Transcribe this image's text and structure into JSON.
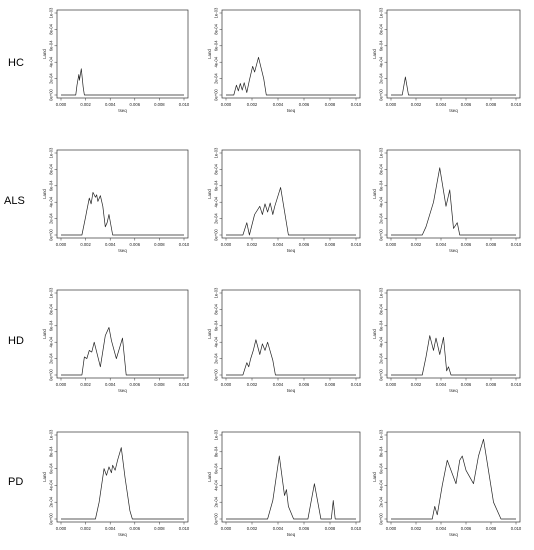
{
  "row_labels": [
    "HC",
    "ALS",
    "HD",
    "PD"
  ],
  "chart_data": [
    {
      "group": "HC",
      "column": 1,
      "type": "line",
      "xlabel": "tseq",
      "ylabel": "Land",
      "xlim": [
        0,
        0.01
      ],
      "ylim": [
        0,
        0.001
      ],
      "x_ticks": [
        "0.000",
        "0.002",
        "0.004",
        "0.006",
        "0.008",
        "0.010"
      ],
      "y_ticks": [
        "0e+00",
        "2e-04",
        "4e-04",
        "6e-04",
        "8e-04",
        "1e-03"
      ],
      "x": [
        0,
        0.0012,
        0.0013,
        0.00145,
        0.0015,
        0.00165,
        0.0018,
        0.0019,
        0.01
      ],
      "y": [
        0,
        0,
        0.00012,
        0.00025,
        0.00018,
        0.00032,
        0.0001,
        0,
        0
      ]
    },
    {
      "group": "HC",
      "column": 2,
      "type": "line",
      "xlabel": "tseq",
      "ylabel": "Land",
      "xlim": [
        0,
        0.01
      ],
      "ylim": [
        0,
        0.001
      ],
      "x_ticks": [
        "0.000",
        "0.002",
        "0.004",
        "0.006",
        "0.008",
        "0.010"
      ],
      "y_ticks": [
        "0e+00",
        "2e-04",
        "4e-04",
        "6e-04",
        "8e-04",
        "1e-03"
      ],
      "x": [
        0,
        0.0006,
        0.0008,
        0.00095,
        0.0011,
        0.00125,
        0.0014,
        0.0016,
        0.0018,
        0.00205,
        0.0022,
        0.0025,
        0.0029,
        0.0031,
        0.01
      ],
      "y": [
        0,
        0,
        0.00012,
        5e-05,
        0.00014,
        6e-05,
        0.00015,
        3e-05,
        0.00018,
        0.00035,
        0.00028,
        0.00046,
        0.0002,
        0,
        0
      ]
    },
    {
      "group": "HC",
      "column": 3,
      "type": "line",
      "xlabel": "tseq",
      "ylabel": "Land",
      "xlim": [
        0,
        0.01
      ],
      "ylim": [
        0,
        0.001
      ],
      "x_ticks": [
        "0.000",
        "0.002",
        "0.004",
        "0.006",
        "0.008",
        "0.010"
      ],
      "y_ticks": [
        "0e+00",
        "2e-04",
        "4e-04",
        "6e-04",
        "8e-04",
        "1e-03"
      ],
      "x": [
        0,
        0.0009,
        0.00115,
        0.0014,
        0.01
      ],
      "y": [
        0,
        0,
        0.00022,
        0,
        0
      ]
    },
    {
      "group": "ALS",
      "column": 1,
      "type": "line",
      "xlabel": "tseq",
      "ylabel": "Land",
      "xlim": [
        0,
        0.01
      ],
      "ylim": [
        0,
        0.001
      ],
      "x_ticks": [
        "0.000",
        "0.002",
        "0.004",
        "0.006",
        "0.008",
        "0.010"
      ],
      "y_ticks": [
        "0e+00",
        "2e-04",
        "4e-04",
        "6e-04",
        "8e-04",
        "1e-03"
      ],
      "x": [
        0,
        0.0017,
        0.002,
        0.0021,
        0.0023,
        0.00245,
        0.0026,
        0.0028,
        0.0029,
        0.003,
        0.0032,
        0.0034,
        0.0036,
        0.00375,
        0.0039,
        0.0042,
        0.01
      ],
      "y": [
        0,
        0,
        0.00022,
        0.0003,
        0.00045,
        0.00038,
        0.00052,
        0.00046,
        0.00049,
        0.00041,
        0.00048,
        0.00035,
        0.0001,
        0.00015,
        0.00025,
        0,
        0
      ]
    },
    {
      "group": "ALS",
      "column": 2,
      "type": "line",
      "xlabel": "tseq",
      "ylabel": "Land",
      "xlim": [
        0,
        0.01
      ],
      "ylim": [
        0,
        0.001
      ],
      "x_ticks": [
        "0.000",
        "0.002",
        "0.004",
        "0.006",
        "0.008",
        "0.010"
      ],
      "y_ticks": [
        "0e+00",
        "2e-04",
        "4e-04",
        "6e-04",
        "8e-04",
        "1e-03"
      ],
      "x": [
        0,
        0.0013,
        0.0016,
        0.0018,
        0.0022,
        0.0026,
        0.0028,
        0.003,
        0.0032,
        0.0034,
        0.0036,
        0.00375,
        0.0042,
        0.0048,
        0.01
      ],
      "y": [
        0,
        0,
        0.00015,
        0,
        0.00025,
        0.00035,
        0.00025,
        0.00038,
        0.00028,
        0.00039,
        0.00025,
        0.00035,
        0.00058,
        0,
        0
      ]
    },
    {
      "group": "ALS",
      "column": 3,
      "type": "line",
      "xlabel": "tseq",
      "ylabel": "Land",
      "xlim": [
        0,
        0.01
      ],
      "ylim": [
        0,
        0.001
      ],
      "x_ticks": [
        "0.000",
        "0.002",
        "0.004",
        "0.006",
        "0.008",
        "0.010"
      ],
      "y_ticks": [
        "0e+00",
        "2e-04",
        "4e-04",
        "6e-04",
        "8e-04",
        "1e-03"
      ],
      "x": [
        0,
        0.0025,
        0.0028,
        0.0034,
        0.0039,
        0.0044,
        0.0047,
        0.005,
        0.0053,
        0.0055,
        0.01
      ],
      "y": [
        0,
        0,
        0.0001,
        0.0004,
        0.00082,
        0.00035,
        0.00055,
        8e-05,
        0.00015,
        0,
        0
      ]
    },
    {
      "group": "HD",
      "column": 1,
      "type": "line",
      "xlabel": "tseq",
      "ylabel": "Land",
      "xlim": [
        0,
        0.01
      ],
      "ylim": [
        0,
        0.001
      ],
      "x_ticks": [
        "0.000",
        "0.002",
        "0.004",
        "0.006",
        "0.008",
        "0.010"
      ],
      "y_ticks": [
        "0e+00",
        "2e-04",
        "4e-04",
        "6e-04",
        "8e-04",
        "1e-03"
      ],
      "x": [
        0,
        0.0017,
        0.0019,
        0.0021,
        0.0023,
        0.0025,
        0.0027,
        0.0032,
        0.0036,
        0.0039,
        0.0041,
        0.0045,
        0.005,
        0.0053,
        0.01
      ],
      "y": [
        0,
        0,
        0.00022,
        0.0002,
        0.0003,
        0.00028,
        0.0004,
        0.0001,
        0.00048,
        0.00058,
        0.00042,
        0.0002,
        0.00045,
        0,
        0
      ]
    },
    {
      "group": "HD",
      "column": 2,
      "type": "line",
      "xlabel": "tseq",
      "ylabel": "Land",
      "xlim": [
        0,
        0.01
      ],
      "ylim": [
        0,
        0.001
      ],
      "x_ticks": [
        "0.000",
        "0.002",
        "0.004",
        "0.006",
        "0.008",
        "0.010"
      ],
      "y_ticks": [
        "0e+00",
        "2e-04",
        "4e-04",
        "6e-04",
        "8e-04",
        "1e-03"
      ],
      "x": [
        0,
        0.0013,
        0.0016,
        0.00175,
        0.0019,
        0.0021,
        0.0023,
        0.0026,
        0.0028,
        0.003,
        0.0032,
        0.0036,
        0.0038,
        0.01
      ],
      "y": [
        0,
        0,
        0.00015,
        0.0001,
        0.0002,
        0.0003,
        0.00043,
        0.00025,
        0.00038,
        0.0003,
        0.0004,
        0.00018,
        0,
        0
      ]
    },
    {
      "group": "HD",
      "column": 3,
      "type": "line",
      "xlabel": "tseq",
      "ylabel": "Land",
      "xlim": [
        0,
        0.01
      ],
      "ylim": [
        0,
        0.001
      ],
      "x_ticks": [
        "0.000",
        "0.002",
        "0.004",
        "0.006",
        "0.008",
        "0.010"
      ],
      "y_ticks": [
        "0e+00",
        "2e-04",
        "4e-04",
        "6e-04",
        "8e-04",
        "1e-03"
      ],
      "x": [
        0,
        0.0025,
        0.0028,
        0.0031,
        0.0034,
        0.0036,
        0.0039,
        0.0042,
        0.00445,
        0.0046,
        0.0048,
        0.01
      ],
      "y": [
        0,
        0,
        0.00022,
        0.00048,
        0.0003,
        0.00045,
        0.00025,
        0.00046,
        5e-05,
        0.0001,
        0,
        0
      ]
    },
    {
      "group": "PD",
      "column": 1,
      "type": "line",
      "xlabel": "tseq",
      "ylabel": "Land",
      "xlim": [
        0,
        0.01
      ],
      "ylim": [
        0,
        0.001
      ],
      "x_ticks": [
        "0.000",
        "0.002",
        "0.004",
        "0.006",
        "0.008",
        "0.010"
      ],
      "y_ticks": [
        "0e+00",
        "2e-04",
        "4e-04",
        "6e-04",
        "8e-04",
        "1e-03"
      ],
      "x": [
        0,
        0.0028,
        0.0031,
        0.0035,
        0.0037,
        0.0039,
        0.0041,
        0.0042,
        0.0044,
        0.0046,
        0.0049,
        0.0052,
        0.0056,
        0.0058,
        0.01
      ],
      "y": [
        0,
        0,
        0.0002,
        0.0006,
        0.00052,
        0.00062,
        0.00055,
        0.00064,
        0.00058,
        0.0007,
        0.00085,
        0.0005,
        0.0001,
        0,
        0
      ]
    },
    {
      "group": "PD",
      "column": 2,
      "type": "line",
      "xlabel": "tseq",
      "ylabel": "Land",
      "xlim": [
        0,
        0.01
      ],
      "ylim": [
        0,
        0.001
      ],
      "x_ticks": [
        "0.000",
        "0.002",
        "0.004",
        "0.006",
        "0.008",
        "0.010"
      ],
      "y_ticks": [
        "0e+00",
        "2e-04",
        "4e-04",
        "6e-04",
        "8e-04",
        "1e-03"
      ],
      "x": [
        0,
        0.0032,
        0.0036,
        0.0041,
        0.0045,
        0.00465,
        0.0048,
        0.0052,
        0.0063,
        0.0068,
        0.0073,
        0.0081,
        0.00825,
        0.0084,
        0.01
      ],
      "y": [
        0,
        0,
        0.00022,
        0.00075,
        0.00028,
        0.00035,
        0.00015,
        0,
        0,
        0.00042,
        0,
        0,
        0.00022,
        0,
        0
      ]
    },
    {
      "group": "PD",
      "column": 3,
      "type": "line",
      "xlabel": "tseq",
      "ylabel": "Land",
      "xlim": [
        0,
        0.01
      ],
      "ylim": [
        0,
        0.001
      ],
      "x_ticks": [
        "0.000",
        "0.002",
        "0.004",
        "0.006",
        "0.008",
        "0.010"
      ],
      "y_ticks": [
        "0e+00",
        "2e-04",
        "4e-04",
        "6e-04",
        "8e-04",
        "1e-03"
      ],
      "x": [
        0,
        0.0033,
        0.0035,
        0.0037,
        0.0041,
        0.0045,
        0.0052,
        0.0055,
        0.0057,
        0.006,
        0.0066,
        0.007,
        0.0074,
        0.0082,
        0.0088,
        0.01
      ],
      "y": [
        0,
        0,
        0.00015,
        5e-05,
        0.0004,
        0.0007,
        0.00042,
        0.0007,
        0.00075,
        0.00058,
        0.00042,
        0.00075,
        0.00095,
        0.0002,
        0,
        0
      ]
    }
  ]
}
